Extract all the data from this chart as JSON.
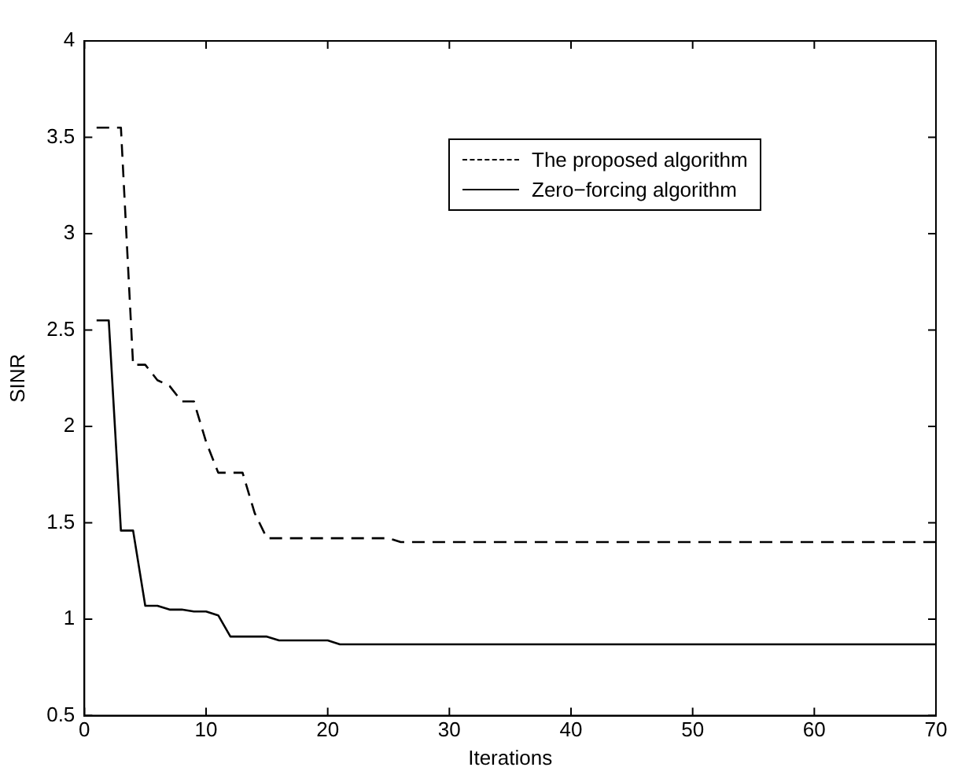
{
  "chart_data": {
    "type": "line",
    "xlabel": "Iterations",
    "ylabel": "SINR",
    "xlim": [
      0,
      70
    ],
    "xticks": [
      0,
      10,
      20,
      30,
      40,
      50,
      60,
      70
    ],
    "ylim": [
      0.5,
      4
    ],
    "yticks": [
      0.5,
      1,
      1.5,
      2,
      2.5,
      3,
      3.5,
      4
    ],
    "grid": false,
    "legend": "top right",
    "marker": "none",
    "series": [
      {
        "name": "The proposed algorithm",
        "color": "#000000",
        "line_style": "dashed",
        "x": [
          1,
          2,
          3,
          4,
          5,
          6,
          7,
          8,
          9,
          10,
          11,
          12,
          13,
          14,
          15,
          25,
          26,
          70
        ],
        "values": [
          3.55,
          3.55,
          3.55,
          2.32,
          2.32,
          2.24,
          2.21,
          2.13,
          2.13,
          1.92,
          1.76,
          1.76,
          1.76,
          1.55,
          1.42,
          1.42,
          1.4,
          1.4
        ]
      },
      {
        "name": "Zero−forcing algorithm",
        "color": "#000000",
        "line_style": "solid",
        "x": [
          1,
          2,
          3,
          4,
          5,
          6,
          7,
          8,
          9,
          10,
          11,
          12,
          15,
          16,
          20,
          21,
          70
        ],
        "values": [
          2.55,
          2.55,
          1.46,
          1.46,
          1.07,
          1.07,
          1.05,
          1.05,
          1.04,
          1.04,
          1.02,
          0.91,
          0.91,
          0.89,
          0.89,
          0.87,
          0.87
        ]
      }
    ]
  }
}
